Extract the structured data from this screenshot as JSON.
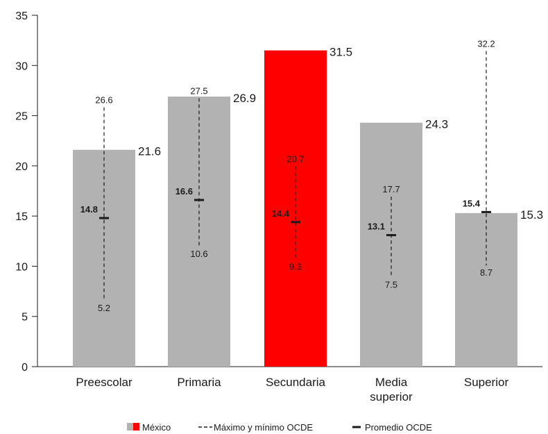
{
  "chart_data": {
    "type": "bar",
    "categories": [
      [
        "Preescolar"
      ],
      [
        "Primaria"
      ],
      [
        "Secundaria"
      ],
      [
        "Media",
        "superior"
      ],
      [
        "Superior"
      ]
    ],
    "ylim": [
      0,
      35
    ],
    "yticks": [
      0,
      5,
      10,
      15,
      20,
      25,
      30,
      35
    ],
    "series": [
      {
        "name": "México",
        "values": [
          21.6,
          26.9,
          31.5,
          24.3,
          15.3
        ]
      }
    ],
    "highlight_index": 2,
    "ocde": {
      "max": [
        26.6,
        27.5,
        20.7,
        17.7,
        32.2
      ],
      "min": [
        5.2,
        10.6,
        9.3,
        7.5,
        8.7
      ],
      "mean": [
        14.8,
        16.6,
        14.4,
        13.1,
        15.4
      ]
    },
    "legend": {
      "mexico": "México",
      "range": "Máximo y mínimo OCDE",
      "mean": "Promedio OCDE"
    },
    "colors": {
      "bar": "#b2b2b2",
      "highlight": "#ff0000",
      "text": "#1a1a1a",
      "axis": "#1a1a1a"
    }
  }
}
